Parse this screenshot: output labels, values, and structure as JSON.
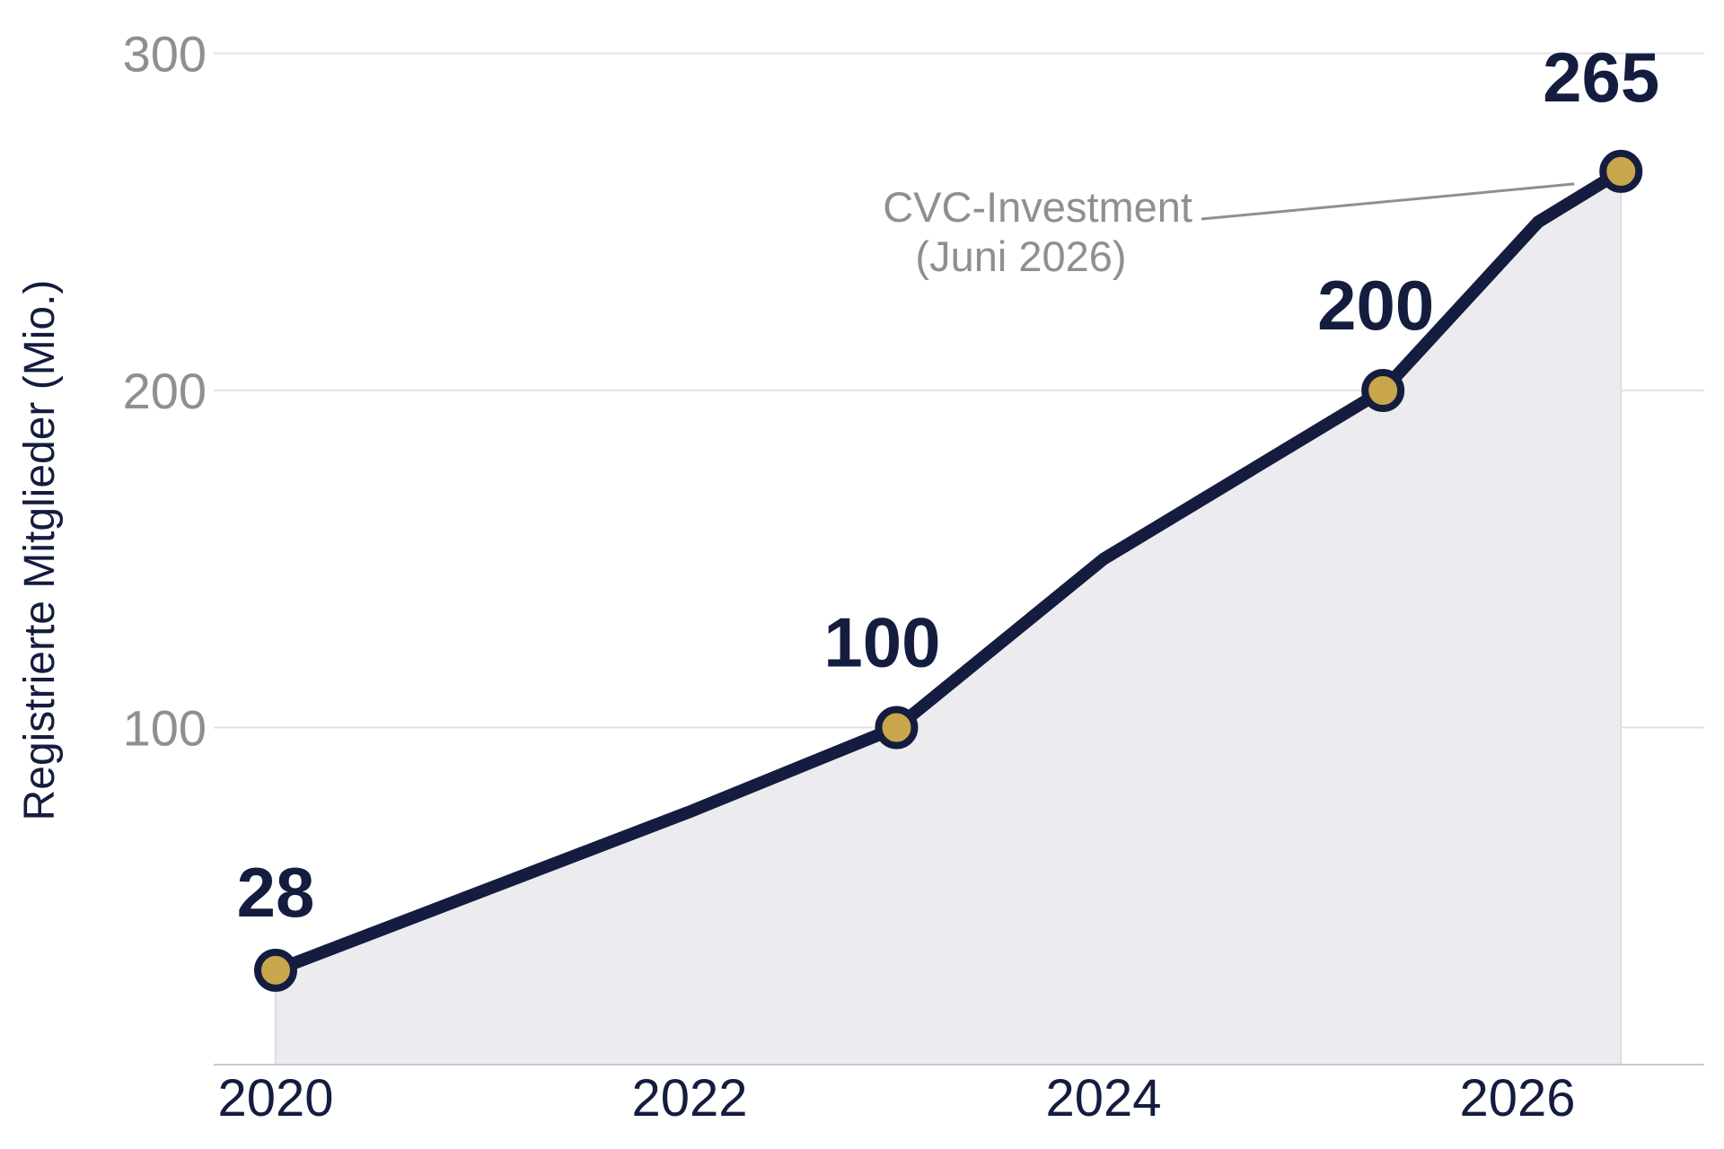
{
  "chart_data": {
    "type": "area",
    "ylabel": "Registrierte Mitglieder (Mio.)",
    "xlabel": "",
    "ylim": [
      0,
      300
    ],
    "xlim": [
      2019.7,
      2027.2
    ],
    "y_ticks": [
      100,
      200,
      300
    ],
    "x_ticks": [
      2020,
      2022,
      2024,
      2026
    ],
    "grid": true,
    "series": [
      {
        "x": [
          2020.0,
          2022.0,
          2023.0,
          2024.0,
          2025.35,
          2026.1,
          2026.5
        ],
        "values": [
          28,
          75,
          100,
          150,
          200,
          250,
          265
        ]
      }
    ],
    "markers": [
      {
        "x": 2020.0,
        "value": 28,
        "label": "28"
      },
      {
        "x": 2023.0,
        "value": 100,
        "label": "100"
      },
      {
        "x": 2025.35,
        "value": 200,
        "label": "200"
      },
      {
        "x": 2026.5,
        "value": 265,
        "label": "265"
      }
    ],
    "annotation": {
      "line1": "CVC-Investment",
      "line2": "(Juni 2026)",
      "target_x": 2026.5,
      "target_value": 265
    },
    "colors": {
      "line": "#141d3f",
      "marker_fill": "#c9a64b",
      "area_fill": "#ececf0",
      "grid": "#e2e2e8",
      "tick_y": "#8f8f8f",
      "annotation": "#8f8f8f"
    }
  }
}
